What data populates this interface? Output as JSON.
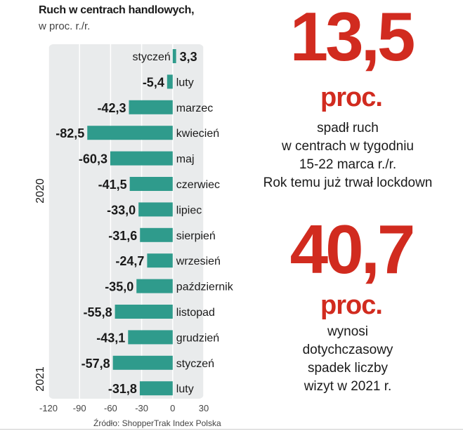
{
  "chart_data": {
    "type": "bar",
    "orientation": "horizontal",
    "title": "Ruch w centrach handlowych,",
    "subtitle": "w proc. r./r.",
    "categories": [
      "styczeń",
      "luty",
      "marzec",
      "kwiecień",
      "maj",
      "czerwiec",
      "lipiec",
      "sierpień",
      "wrzesień",
      "październik",
      "listopad",
      "grudzień",
      "styczeń",
      "luty"
    ],
    "values": [
      3.3,
      -5.4,
      -42.3,
      -82.5,
      -60.3,
      -41.5,
      -33.0,
      -31.6,
      -24.7,
      -35.0,
      -55.8,
      -43.1,
      -57.8,
      -31.8
    ],
    "value_labels": [
      "3,3",
      "-5,4",
      "-42,3",
      "-82,5",
      "-60,3",
      "-41,5",
      "-33,0",
      "-31,6",
      "-24,7",
      "-35,0",
      "-55,8",
      "-43,1",
      "-57,8",
      "-31,8"
    ],
    "groups": [
      {
        "label": "2020",
        "from": 0,
        "to": 11
      },
      {
        "label": "2021",
        "from": 12,
        "to": 13
      }
    ],
    "xticks": [
      -120,
      -90,
      -60,
      -30,
      0,
      30
    ],
    "xlim": [
      -120,
      30
    ],
    "bar_color": "#2f9b8c",
    "panel_color": "#e9ebec",
    "source": "Źródło: ShopperTrak Index Polska"
  },
  "stat1": {
    "number": "13,5",
    "unit": "proc.",
    "lines": [
      "spadł ruch",
      "w centrach w tygodniu",
      "15-22 marca r./r.",
      "Rok temu już trwał lockdown"
    ]
  },
  "stat2": {
    "number": "40,7",
    "unit": "proc.",
    "lines": [
      "wynosi",
      "dotychczasowy",
      "spadek liczby",
      "wizyt w 2021 r."
    ]
  },
  "colors": {
    "accent": "#d12b1f",
    "bar": "#2f9b8c",
    "panel": "#e9ebec"
  }
}
